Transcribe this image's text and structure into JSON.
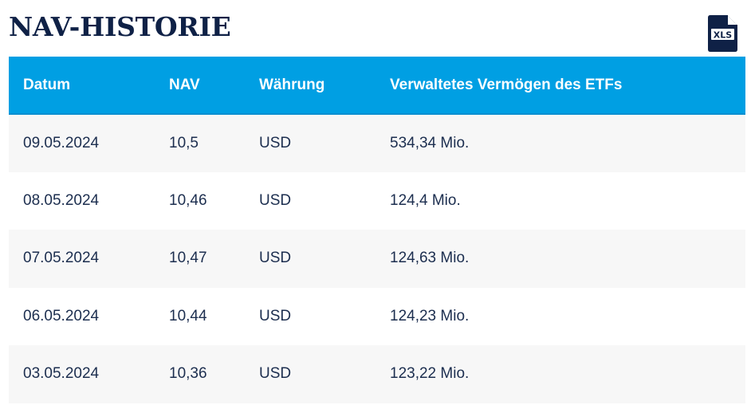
{
  "header": {
    "title": "NAV-HISTORIE",
    "download": {
      "icon": "xls-file-icon",
      "label": "XLS"
    }
  },
  "table": {
    "columns": [
      "Datum",
      "NAV",
      "Währung",
      "Verwaltetes Vermögen des ETFs"
    ],
    "rows": [
      {
        "date": "09.05.2024",
        "nav": "10,5",
        "currency": "USD",
        "aum": "534,34 Mio."
      },
      {
        "date": "08.05.2024",
        "nav": "10,46",
        "currency": "USD",
        "aum": "124,4 Mio."
      },
      {
        "date": "07.05.2024",
        "nav": "10,47",
        "currency": "USD",
        "aum": "124,63 Mio."
      },
      {
        "date": "06.05.2024",
        "nav": "10,44",
        "currency": "USD",
        "aum": "124,23 Mio."
      },
      {
        "date": "03.05.2024",
        "nav": "10,36",
        "currency": "USD",
        "aum": "123,22 Mio."
      }
    ]
  },
  "colors": {
    "header_bg": "#009fe3",
    "title": "#0f2146",
    "icon": "#0f2146",
    "row_alt_bg": "#f7f7f7",
    "cell_text": "#1c2e4f"
  }
}
